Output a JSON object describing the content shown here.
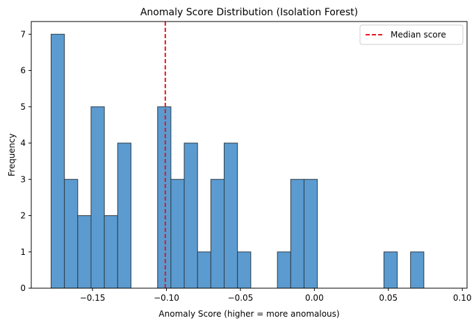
{
  "chart_data": {
    "type": "bar",
    "subtype": "histogram",
    "title": "Anomaly Score Distribution (Isolation Forest)",
    "xlabel": "Anomaly Score (higher = more anomalous)",
    "ylabel": "Frequency",
    "xlim": [
      -0.1914,
      0.1032
    ],
    "ylim": [
      0,
      7.35
    ],
    "x_ticks": [
      {
        "value": -0.15,
        "label": "−0.15"
      },
      {
        "value": -0.1,
        "label": "−0.10"
      },
      {
        "value": -0.05,
        "label": "−0.05"
      },
      {
        "value": 0.0,
        "label": "0.00"
      },
      {
        "value": 0.05,
        "label": "0.05"
      },
      {
        "value": 0.1,
        "label": "0.10"
      }
    ],
    "y_ticks": [
      {
        "value": 0,
        "label": "0"
      },
      {
        "value": 1,
        "label": "1"
      },
      {
        "value": 2,
        "label": "2"
      },
      {
        "value": 3,
        "label": "3"
      },
      {
        "value": 4,
        "label": "4"
      },
      {
        "value": 5,
        "label": "5"
      },
      {
        "value": 6,
        "label": "6"
      },
      {
        "value": 7,
        "label": "7"
      }
    ],
    "bin_start": -0.178,
    "bin_width": 0.009,
    "counts": [
      7,
      3,
      2,
      5,
      2,
      4,
      0,
      0,
      5,
      3,
      4,
      1,
      3,
      4,
      1,
      0,
      0,
      1,
      3,
      3,
      0,
      0,
      0,
      0,
      0,
      1,
      0,
      1
    ],
    "bar_color": "#5b9bd0",
    "bar_edge_color": "#2d3a45",
    "median": {
      "value": -0.1008,
      "label": "Median score",
      "color": "#e8141c",
      "style": "dashed"
    },
    "legend_position": "top-right",
    "grid": false
  }
}
